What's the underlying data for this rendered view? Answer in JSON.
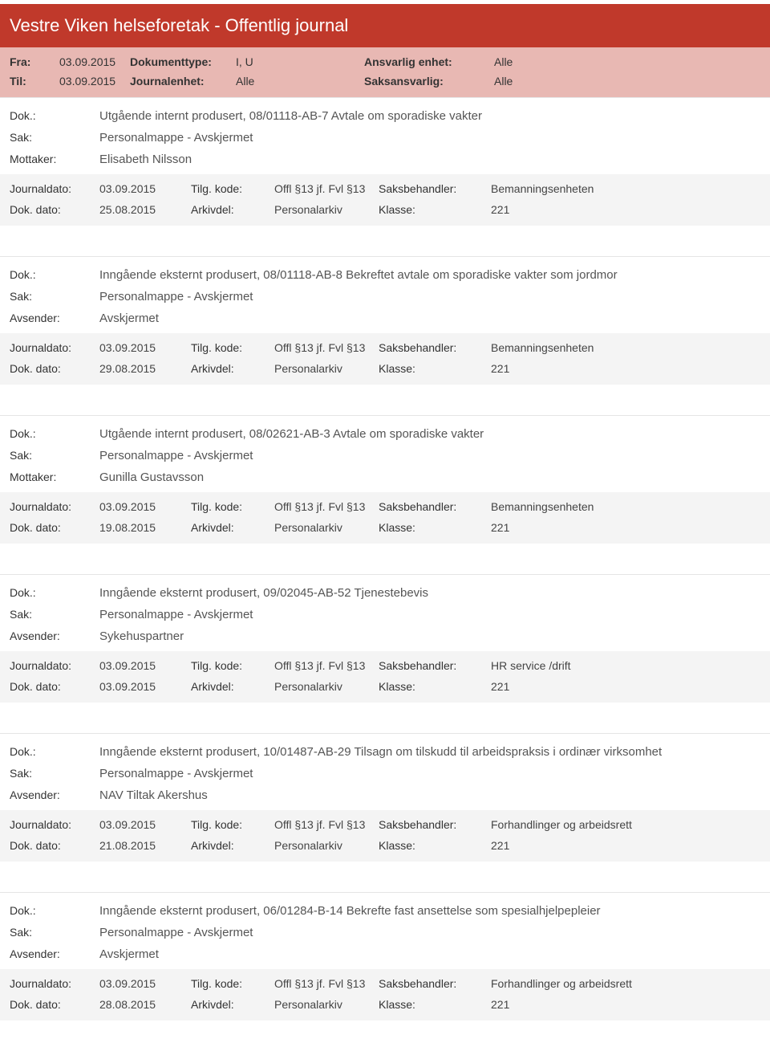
{
  "title": "Vestre Viken helseforetak - Offentlig journal",
  "meta": {
    "fra_lbl": "Fra:",
    "fra": "03.09.2015",
    "til_lbl": "Til:",
    "til": "03.09.2015",
    "doktype_lbl": "Dokumenttype:",
    "doktype": "I, U",
    "journalenhet_lbl": "Journalenhet:",
    "journalenhet": "Alle",
    "ansvarlig_lbl": "Ansvarlig enhet:",
    "ansvarlig": "Alle",
    "saksansvarlig_lbl": "Saksansvarlig:",
    "saksansvarlig": "Alle"
  },
  "labels": {
    "dok": "Dok.:",
    "sak": "Sak:",
    "mottaker": "Mottaker:",
    "avsender": "Avsender:",
    "journaldato": "Journaldato:",
    "dokdato": "Dok. dato:",
    "tilgkode": "Tilg. kode:",
    "arkivdel": "Arkivdel:",
    "saksbehandler": "Saksbehandler:",
    "klasse": "Klasse:"
  },
  "entries": [
    {
      "dok": "Utgående internt produsert, 08/01118-AB-7 Avtale om sporadiske vakter",
      "sak": "Personalmappe - Avskjermet",
      "party_lbl": "Mottaker:",
      "party": "Elisabeth Nilsson",
      "journaldato": "03.09.2015",
      "dokdato": "25.08.2015",
      "tilgkode": "Offl §13 jf. Fvl §13",
      "arkivdel": "Personalarkiv",
      "saksbehandler": "Bemanningsenheten",
      "klasse": "221"
    },
    {
      "dok": "Inngående eksternt produsert, 08/01118-AB-8 Bekreftet avtale om sporadiske vakter som jordmor",
      "sak": "Personalmappe - Avskjermet",
      "party_lbl": "Avsender:",
      "party": "Avskjermet",
      "journaldato": "03.09.2015",
      "dokdato": "29.08.2015",
      "tilgkode": "Offl §13 jf. Fvl §13",
      "arkivdel": "Personalarkiv",
      "saksbehandler": "Bemanningsenheten",
      "klasse": "221"
    },
    {
      "dok": "Utgående internt produsert, 08/02621-AB-3 Avtale om sporadiske vakter",
      "sak": "Personalmappe - Avskjermet",
      "party_lbl": "Mottaker:",
      "party": "Gunilla Gustavsson",
      "journaldato": "03.09.2015",
      "dokdato": "19.08.2015",
      "tilgkode": "Offl §13 jf. Fvl §13",
      "arkivdel": "Personalarkiv",
      "saksbehandler": "Bemanningsenheten",
      "klasse": "221"
    },
    {
      "dok": "Inngående eksternt produsert, 09/02045-AB-52 Tjenestebevis",
      "sak": "Personalmappe - Avskjermet",
      "party_lbl": "Avsender:",
      "party": "Sykehuspartner",
      "journaldato": "03.09.2015",
      "dokdato": "03.09.2015",
      "tilgkode": "Offl §13 jf. Fvl §13",
      "arkivdel": "Personalarkiv",
      "saksbehandler": "HR service /drift",
      "klasse": "221"
    },
    {
      "dok": "Inngående eksternt produsert, 10/01487-AB-29 Tilsagn om tilskudd til arbeidspraksis i ordinær virksomhet",
      "sak": "Personalmappe - Avskjermet",
      "party_lbl": "Avsender:",
      "party": "NAV Tiltak Akershus",
      "journaldato": "03.09.2015",
      "dokdato": "21.08.2015",
      "tilgkode": "Offl §13 jf. Fvl §13",
      "arkivdel": "Personalarkiv",
      "saksbehandler": "Forhandlinger og arbeidsrett",
      "klasse": "221"
    },
    {
      "dok": "Inngående eksternt produsert, 06/01284-B-14 Bekrefte fast ansettelse som spesialhjelpepleier",
      "sak": "Personalmappe - Avskjermet",
      "party_lbl": "Avsender:",
      "party": "Avskjermet",
      "journaldato": "03.09.2015",
      "dokdato": "28.08.2015",
      "tilgkode": "Offl §13 jf. Fvl §13",
      "arkivdel": "Personalarkiv",
      "saksbehandler": "Forhandlinger og arbeidsrett",
      "klasse": "221"
    }
  ]
}
